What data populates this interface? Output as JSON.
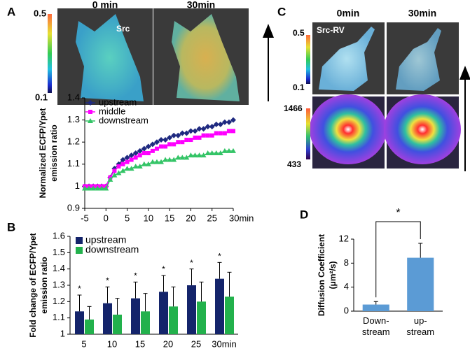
{
  "panel_labels": [
    "A",
    "B",
    "C",
    "D"
  ],
  "images": {
    "a_times": [
      "0 min",
      "30min"
    ],
    "a_probe": "Src",
    "a_scale": [
      "0.5",
      "0.1"
    ],
    "c_times": [
      "0min",
      "30min"
    ],
    "c_probe": "Src-RV",
    "c_scale_ratio": [
      "0.5",
      "0.1"
    ],
    "c_scale_intensity": [
      "1466",
      "433"
    ]
  },
  "chart_data": [
    {
      "type": "line",
      "ylabel": [
        "Normalized ECFP/Ypet",
        "emission ratio"
      ],
      "x": [
        -5,
        -4,
        -3,
        -2,
        -1,
        0,
        1,
        2,
        3,
        4,
        5,
        6,
        7,
        8,
        9,
        10,
        11,
        12,
        13,
        14,
        15,
        16,
        17,
        18,
        19,
        20,
        21,
        22,
        23,
        24,
        25,
        26,
        27,
        28,
        29,
        30
      ],
      "series": [
        {
          "name": "upstream",
          "color": "#1f2a80",
          "marker": "diamond",
          "values": [
            1.0,
            1.0,
            1.0,
            1.0,
            1.0,
            1.0,
            1.04,
            1.08,
            1.1,
            1.12,
            1.13,
            1.14,
            1.15,
            1.16,
            1.17,
            1.18,
            1.19,
            1.2,
            1.21,
            1.21,
            1.22,
            1.23,
            1.23,
            1.24,
            1.24,
            1.25,
            1.25,
            1.26,
            1.26,
            1.27,
            1.27,
            1.28,
            1.28,
            1.29,
            1.29,
            1.3
          ]
        },
        {
          "name": "middle",
          "color": "#ff00ff",
          "marker": "square",
          "values": [
            1.0,
            1.0,
            1.0,
            1.0,
            1.0,
            1.0,
            1.04,
            1.07,
            1.09,
            1.1,
            1.11,
            1.12,
            1.13,
            1.14,
            1.15,
            1.15,
            1.16,
            1.17,
            1.18,
            1.18,
            1.19,
            1.19,
            1.2,
            1.2,
            1.21,
            1.21,
            1.22,
            1.22,
            1.23,
            1.23,
            1.23,
            1.24,
            1.24,
            1.24,
            1.25,
            1.25
          ]
        },
        {
          "name": "downstream",
          "color": "#33c466",
          "marker": "triangle",
          "values": [
            0.99,
            0.99,
            0.99,
            0.99,
            0.99,
            0.99,
            1.03,
            1.05,
            1.06,
            1.07,
            1.08,
            1.08,
            1.09,
            1.09,
            1.1,
            1.1,
            1.11,
            1.11,
            1.11,
            1.12,
            1.12,
            1.12,
            1.13,
            1.13,
            1.13,
            1.14,
            1.14,
            1.14,
            1.14,
            1.15,
            1.15,
            1.15,
            1.15,
            1.16,
            1.16,
            1.16
          ]
        }
      ],
      "xlim": [
        -5,
        30
      ],
      "xticks": [
        -5,
        0,
        5,
        10,
        15,
        20,
        25,
        {
          "value": 30,
          "label": "30min"
        }
      ],
      "ylim": [
        0.9,
        1.4
      ],
      "yticks": [
        0.9,
        1,
        1.1,
        1.2,
        1.3,
        1.4
      ],
      "legend": "upper left"
    },
    {
      "type": "bar",
      "ylabel": [
        "Fold change of ECFP/Ypet",
        "emission ratio"
      ],
      "categories": [
        "5",
        "10",
        "15",
        "20",
        "25",
        "30min"
      ],
      "series": [
        {
          "name": "upstream",
          "color": "#14246b",
          "values": [
            1.14,
            1.19,
            1.22,
            1.26,
            1.3,
            1.34
          ],
          "errors": [
            0.1,
            0.1,
            0.1,
            0.1,
            0.1,
            0.1
          ]
        },
        {
          "name": "downstream",
          "color": "#22b14c",
          "values": [
            1.09,
            1.12,
            1.14,
            1.17,
            1.2,
            1.23
          ],
          "errors": [
            0.08,
            0.1,
            0.11,
            0.12,
            0.12,
            0.15
          ]
        }
      ],
      "annotations": [
        "*",
        "*",
        "*",
        "*",
        "*",
        "*"
      ],
      "ylim": [
        1,
        1.6
      ],
      "yticks": [
        1,
        1.1,
        1.2,
        1.3,
        1.4,
        1.5,
        1.6
      ],
      "legend": "upper left"
    },
    {
      "type": "bar",
      "ylabel": [
        "Diffusion Coefficient",
        "(μm²/s)"
      ],
      "categories": [
        "Down-stream",
        "up-stream"
      ],
      "values": [
        1.1,
        8.9
      ],
      "errors": [
        0.5,
        2.4
      ],
      "color": "#5b9bd5",
      "annotations": [
        "*"
      ],
      "ylim": [
        0,
        12
      ],
      "yticks": [
        0,
        4,
        8,
        12
      ]
    }
  ]
}
